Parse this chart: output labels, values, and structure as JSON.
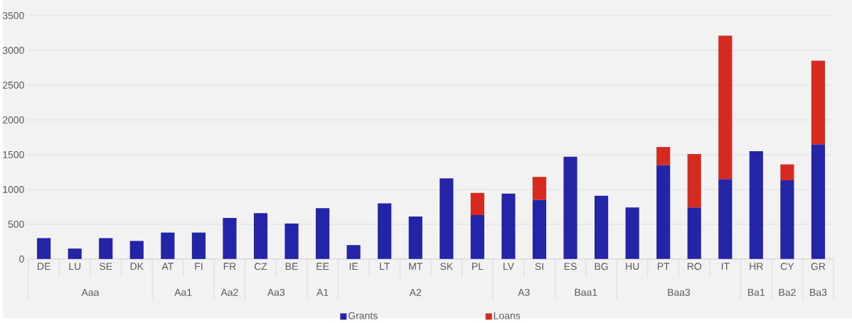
{
  "chart_data": {
    "type": "bar",
    "stacked": true,
    "categories": [
      "DE",
      "LU",
      "SE",
      "DK",
      "AT",
      "FI",
      "FR",
      "CZ",
      "BE",
      "EE",
      "IE",
      "LT",
      "MT",
      "SK",
      "PL",
      "LV",
      "SI",
      "ES",
      "BG",
      "HU",
      "PT",
      "RO",
      "IT",
      "HR",
      "CY",
      "GR"
    ],
    "series": [
      {
        "name": "Grants",
        "color": "#2424a6",
        "values": [
          300,
          150,
          300,
          260,
          380,
          380,
          590,
          660,
          510,
          730,
          200,
          800,
          610,
          1160,
          630,
          940,
          850,
          1470,
          910,
          740,
          1350,
          740,
          1150,
          1550,
          1130,
          1650
        ]
      },
      {
        "name": "Loans",
        "color": "#d42a20",
        "values": [
          null,
          null,
          null,
          null,
          null,
          null,
          null,
          null,
          null,
          null,
          null,
          null,
          null,
          null,
          320,
          null,
          330,
          null,
          null,
          null,
          260,
          770,
          2060,
          null,
          230,
          1200
        ]
      }
    ],
    "ylim": [
      0,
      3500
    ],
    "yticks": [
      0,
      500,
      1000,
      1500,
      2000,
      2500,
      3000,
      3500
    ],
    "grid": "y",
    "legend": "bottom",
    "annotations": [
      "Aaa",
      "Aa1",
      "Aa2",
      "Aa3",
      "A1",
      "A2",
      "A3",
      "Baa1",
      "Baa3",
      "Ba1",
      "Ba2",
      "Ba3"
    ]
  }
}
